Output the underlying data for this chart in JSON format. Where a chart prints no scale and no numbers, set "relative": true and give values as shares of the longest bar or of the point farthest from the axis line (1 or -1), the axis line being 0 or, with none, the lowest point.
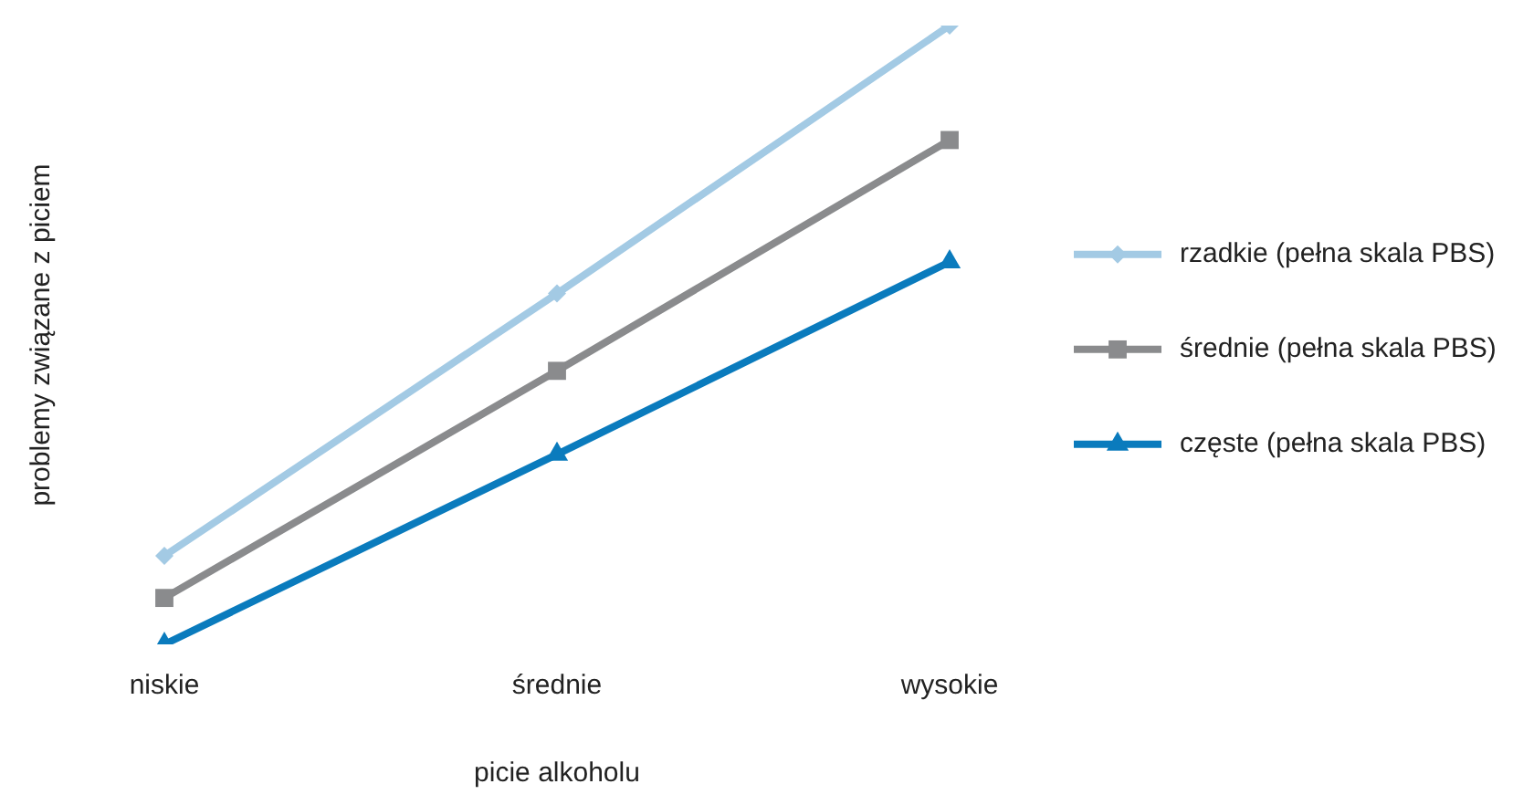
{
  "chart_data": {
    "type": "line",
    "relative": true,
    "xlabel": "picie alkoholu",
    "ylabel": "problemy związane z piciem",
    "categories": [
      "niskie",
      "średnie",
      "wysokie"
    ],
    "series": [
      {
        "name": "rzadkie (pełna skala PBS)",
        "color": "#a3cae4",
        "marker": "diamond",
        "values": [
          0.143,
          0.567,
          1
        ]
      },
      {
        "name": "średnie (pełna skala PBS)",
        "color": "#8a8b8d",
        "marker": "square",
        "values": [
          0.075,
          0.442,
          0.815
        ]
      },
      {
        "name": "częste (pełna skala PBS)",
        "color": "#0a7bbd",
        "marker": "triangle",
        "values": [
          0,
          0.307,
          0.618
        ]
      }
    ],
    "legend": "right",
    "grid": false,
    "line_style": "solid"
  }
}
